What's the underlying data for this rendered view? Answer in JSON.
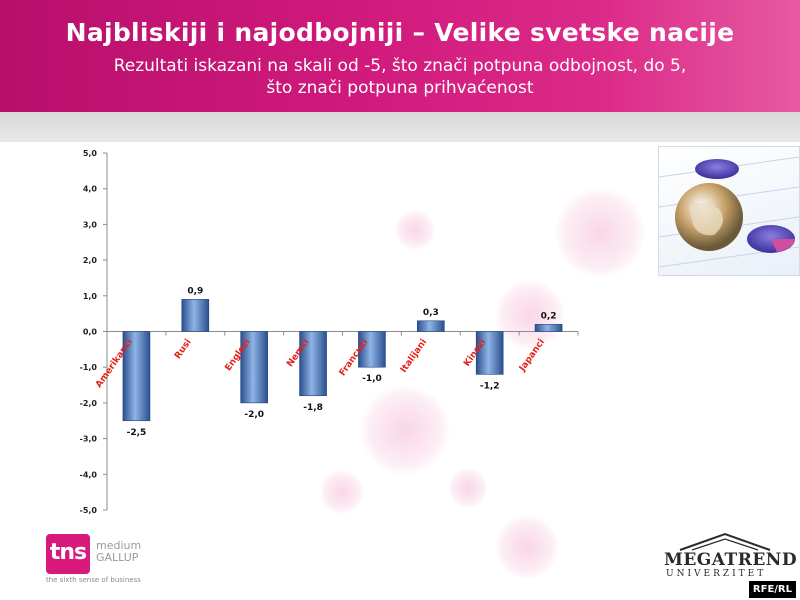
{
  "header": {
    "title": "Najbliskiji i najodbojniji – Velike svetske nacije",
    "subtitle_line1": "Rezultati iskazani na skali od -5, što znači potpuna odbojnost, do 5,",
    "subtitle_line2": "što znači potpuna prihvaćenost"
  },
  "colors": {
    "header": "#c8146f",
    "bar": "#4a7fc4",
    "category_label": "#e2231a",
    "value_label": "#111111"
  },
  "chart_data": {
    "type": "bar",
    "categories": [
      "Amerikanci",
      "Rusi",
      "Englezi",
      "Nemci",
      "Francuzi",
      "Italijani",
      "Kinezi",
      "Japanci"
    ],
    "values": [
      -2.5,
      0.9,
      -2.0,
      -1.8,
      -1.0,
      0.3,
      -1.2,
      0.2
    ],
    "value_labels": [
      "-2,5",
      "0,9",
      "-2,0",
      "-1,8",
      "-1,0",
      "0,3",
      "-1,2",
      "0,2"
    ],
    "yticks": [
      5,
      4,
      3,
      2,
      1,
      0,
      -1,
      -2,
      -3,
      -4,
      -5
    ],
    "ytick_labels": [
      "5,0",
      "4,0",
      "3,0",
      "2,0",
      "1,0",
      "0,0",
      "-1,0",
      "-2,0",
      "-3,0",
      "-4,0",
      "-5,0"
    ],
    "ylim": [
      -5,
      5
    ],
    "grid": false,
    "legend": "none"
  },
  "logos": {
    "tns": {
      "mark": "tns",
      "line1": "medium",
      "line2": "GALLUP",
      "tagline": "the sixth sense of business"
    },
    "megatrend": {
      "name": "MEGATREND",
      "sub": "UNIVERZITET"
    },
    "watermark": "RFE/RL"
  }
}
